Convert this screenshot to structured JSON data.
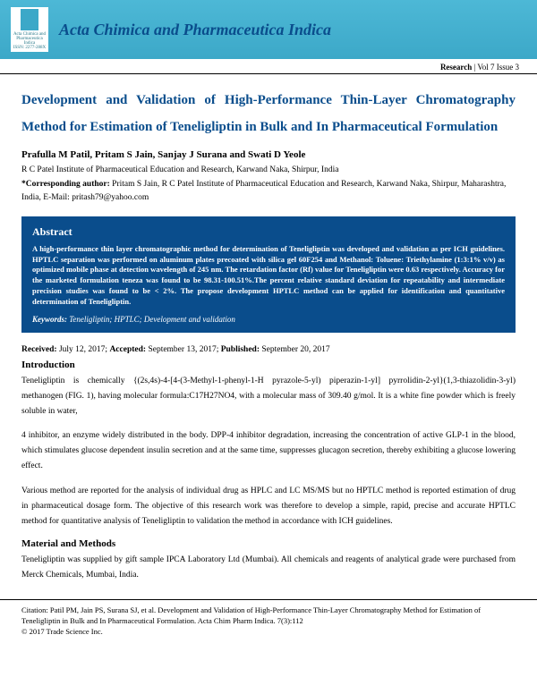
{
  "header": {
    "journal_title": "Acta Chimica and Pharmaceutica Indica",
    "logo_text": "Acta Chimica and Pharmaceutica Indica",
    "logo_issn": "ISSN: 2277-288X"
  },
  "meta": {
    "research_label": "Research",
    "issue": " | Vol 7 Issue 3"
  },
  "article": {
    "title": "Development and Validation of High-Performance Thin-Layer Chromatography Method for Estimation of Teneligliptin in Bulk and In Pharmaceutical Formulation",
    "authors": "Prafulla M Patil, Pritam S Jain, Sanjay J Surana and Swati D Yeole",
    "affiliation": "R C Patel Institute of Pharmaceutical Education and Research, Karwand Naka, Shirpur, India",
    "corresponding_label": "*Corresponding author:",
    "corresponding_text": " Pritam S Jain, R C Patel Institute of Pharmaceutical Education and Research, Karwand Naka, Shirpur, Maharashtra, India, E-Mail: pritash79@yahoo.com"
  },
  "abstract": {
    "heading": "Abstract",
    "text": "A high-performance thin layer chromatographic method for determination of Teneligliptin was developed and validation as per ICH guidelines. HPTLC separation was performed on aluminum plates precoated with silica gel 60F254 and Methanol: Toluene: Triethylamine (1:3:1% v/v) as optimized mobile phase at detection wavelength of 245 nm. The retardation factor (Rf) value for Teneligliptin were 0.63 respectively. Accuracy for the marketed formulation teneza was found to be 98.31-100.51%.The percent relative standard deviation for repeatability and intermediate precision studies was found to be < 2%. The propose development HPTLC method can be applied for identification and quantitative determination of Teneligliptin.",
    "keywords_label": "Keywords:",
    "keywords_text": " Teneligliptin; HPTLC; Development and validation"
  },
  "dates": {
    "received_label": "Received:",
    "received": " July 12, 2017; ",
    "accepted_label": "Accepted:",
    "accepted": " September 13, 2017; ",
    "published_label": "Published:",
    "published": " September 20, 2017"
  },
  "sections": {
    "intro_heading": "Introduction",
    "intro_p1": "Teneligliptin is chemically {(2s,4s)-4-[4-(3-Methyl-1-phenyl-1-H pyrazole-5-yl) piperazin-1-yl] pyrrolidin-2-yl}(1,3-thiazolidin-3-yl) methanogen (FIG. 1), having molecular formula:C17H27NO4, with a molecular mass of 309.40 g/mol. It is a white fine powder which is freely soluble in water,",
    "intro_p2": "4 inhibitor, an enzyme widely distributed in the body. DPP-4 inhibitor degradation, increasing the concentration of active GLP-1 in the blood, which stimulates glucose dependent insulin secretion and at the same time, suppresses glucagon secretion, thereby exhibiting a glucose lowering effect.",
    "intro_p3": "Various method are reported for the analysis of individual drug as HPLC and LC MS/MS but no HPTLC method is reported estimation of drug in pharmaceutical dosage form. The objective of this research work was therefore to develop a simple, rapid, precise and accurate HPTLC method for quantitative analysis of Teneligliptin to validation the method in accordance with ICH guidelines.",
    "mm_heading": "Material and Methods",
    "mm_p1": "Teneligliptin was supplied by gift sample IPCA Laboratory Ltd (Mumbai). All chemicals and reagents of analytical grade were purchased from Merck Chemicals, Mumbai, India."
  },
  "citation": {
    "text": "Citation: Patil PM, Jain PS, Surana SJ, et al.  Development and Validation of High-Performance Thin-Layer Chromatography Method for Estimation of Teneligliptin in Bulk and In Pharmaceutical Formulation.  Acta Chim Pharm Indica. 7(3):112",
    "copyright": "© 2017 Trade Science Inc."
  },
  "colors": {
    "header_bg": "#3ca8c8",
    "title_color": "#0a4d8c",
    "abstract_bg": "#0a4d8c",
    "text_color": "#000000",
    "bg": "#ffffff"
  }
}
